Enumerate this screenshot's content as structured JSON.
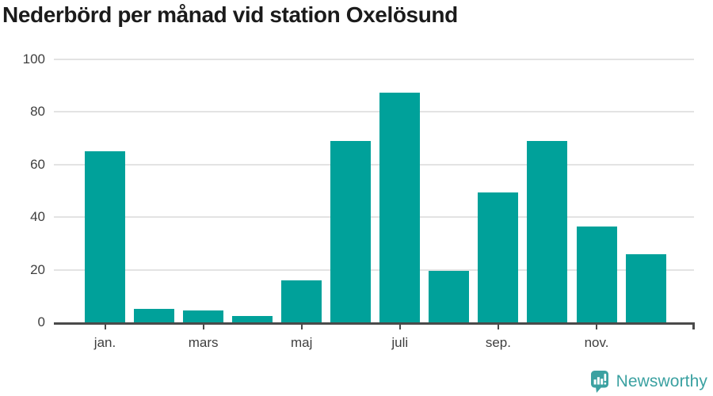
{
  "title": "Nederbörd per månad vid station Oxelösund",
  "chart_data": {
    "type": "bar",
    "title": "Nederbörd per månad vid station Oxelösund",
    "values": [
      65,
      5,
      4.5,
      2.5,
      16,
      69,
      87.5,
      19.5,
      49.5,
      69,
      36.5,
      26
    ],
    "n_bars": 12,
    "x_tick_indices": [
      0,
      2,
      4,
      6,
      8,
      10
    ],
    "x_tick_labels": [
      "jan.",
      "mars",
      "maj",
      "juli",
      "sep.",
      "nov."
    ],
    "y_ticks": [
      0,
      20,
      40,
      60,
      80,
      100
    ],
    "ylim": [
      0,
      100
    ],
    "xlabel": "",
    "ylabel": "",
    "grid": true,
    "legend": "none",
    "bar_color": "#00a19a",
    "grid_color": "#e3e3e3",
    "axis_color": "#4a4a4a",
    "tick_label_color": "#3f3f3f"
  },
  "branding": {
    "logo_text": "Newsworthy",
    "logo_color": "#3ba1a1",
    "logo_icon": "newsworthy-speech-bubble-chart-icon"
  }
}
